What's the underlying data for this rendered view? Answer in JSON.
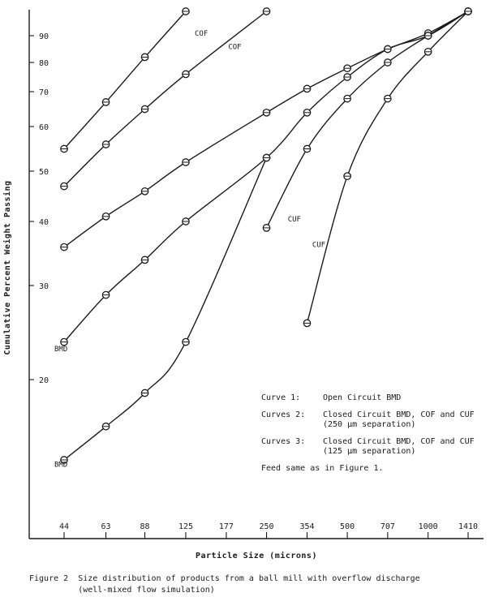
{
  "chart_data": {
    "type": "line",
    "xlabel": "Particle Size (microns)",
    "ylabel": "Cumulative Percent Weight Passing",
    "x_scale": "log",
    "y_scale": "probability",
    "xlim": [
      44,
      1410
    ],
    "ylim": [
      12,
      100
    ],
    "x_ticks": [
      {
        "value": 44,
        "label": "44"
      },
      {
        "value": 63,
        "label": "63"
      },
      {
        "value": 88,
        "label": "88"
      },
      {
        "value": 125,
        "label": "125"
      },
      {
        "value": 177,
        "label": "177"
      },
      {
        "value": 250,
        "label": "250"
      },
      {
        "value": 354,
        "label": "354"
      },
      {
        "value": 500,
        "label": "500"
      },
      {
        "value": 707,
        "label": "707"
      },
      {
        "value": 1000,
        "label": "1000"
      },
      {
        "value": 1410,
        "label": "1410"
      }
    ],
    "y_ticks": [
      {
        "value": 90,
        "label": "90"
      },
      {
        "value": 80,
        "label": "80"
      },
      {
        "value": 70,
        "label": "70"
      },
      {
        "value": 60,
        "label": "60"
      },
      {
        "value": 50,
        "label": "50"
      },
      {
        "value": 40,
        "label": "40"
      },
      {
        "value": 30,
        "label": "30"
      },
      {
        "value": 20,
        "label": "20"
      }
    ],
    "series": [
      {
        "label": "COF",
        "label_at": [
          135,
          90
        ],
        "x": [
          44,
          63,
          88,
          125
        ],
        "y": [
          55,
          67,
          82,
          100
        ]
      },
      {
        "label": "COF",
        "label_at": [
          180,
          85
        ],
        "x": [
          44,
          63,
          88,
          125,
          250
        ],
        "y": [
          47,
          56,
          65,
          76,
          100
        ]
      },
      {
        "label": "",
        "label_at": null,
        "x": [
          44,
          63,
          88,
          125,
          250,
          354,
          500,
          707,
          1000,
          1410
        ],
        "y": [
          36,
          41,
          46,
          52,
          64,
          71,
          78,
          85,
          91,
          100
        ]
      },
      {
        "label": "BMD",
        "label_at": [
          44,
          23
        ],
        "x": [
          44,
          63,
          88,
          125,
          250,
          354,
          500,
          707,
          1000,
          1410
        ],
        "y": [
          24,
          29,
          34,
          40,
          53,
          64,
          75,
          85,
          90,
          100
        ]
      },
      {
        "label": "BMD",
        "label_at": [
          44,
          13.5
        ],
        "x": [
          44,
          63,
          88,
          125,
          250
        ],
        "y": [
          14,
          16.5,
          19,
          24,
          53
        ]
      },
      {
        "label": "CUF",
        "label_at": [
          300,
          40
        ],
        "x": [
          250,
          354,
          500,
          707,
          1000,
          1410
        ],
        "y": [
          39,
          55,
          68,
          80,
          90,
          100
        ]
      },
      {
        "label": "CUF",
        "label_at": [
          370,
          36
        ],
        "x": [
          354,
          500,
          707,
          1000,
          1410
        ],
        "y": [
          26,
          49,
          68,
          84,
          100
        ]
      }
    ],
    "legend": {
      "placement": "bottom-right",
      "entries": [
        {
          "key": "Curve  1:",
          "lines": [
            "Open Circuit BMD"
          ]
        },
        {
          "key": "Curves 2:",
          "lines": [
            "Closed Circuit BMD, COF and CUF",
            "(250 µm separation)"
          ]
        },
        {
          "key": "Curves 3:",
          "lines": [
            "Closed Circuit BMD, COF and CUF",
            "(125 µm separation)"
          ]
        },
        {
          "key": "",
          "lines": [
            "Feed same as in Figure 1."
          ]
        }
      ]
    },
    "caption": [
      "Figure 2  Size distribution of products from a ball mill with overflow discharge",
      "          (well-mixed flow simulation)"
    ]
  }
}
